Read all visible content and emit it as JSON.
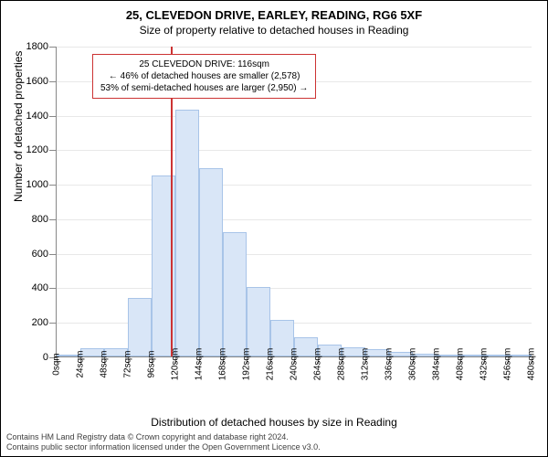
{
  "title_main": "25, CLEVEDON DRIVE, EARLEY, READING, RG6 5XF",
  "title_sub": "Size of property relative to detached houses in Reading",
  "y_axis_title": "Number of detached properties",
  "x_axis_title": "Distribution of detached houses by size in Reading",
  "annotation": {
    "line1": "25 CLEVEDON DRIVE: 116sqm",
    "line2": "← 46% of detached houses are smaller (2,578)",
    "line3": "53% of semi-detached houses are larger (2,950) →"
  },
  "footer": {
    "line1": "Contains HM Land Registry data © Crown copyright and database right 2024.",
    "line2": "Contains public sector information licensed under the Open Government Licence v3.0."
  },
  "chart": {
    "type": "histogram",
    "background_color": "#ffffff",
    "grid_color": "#e8e8e8",
    "axis_color": "#888888",
    "bar_fill": "#d9e6f7",
    "bar_stroke": "#a8c4e8",
    "reference_line_color": "#cc3333",
    "annotation_border": "#cc3333",
    "ylim": [
      0,
      1800
    ],
    "ytick_step": 200,
    "xlim": [
      0,
      480
    ],
    "xtick_step": 24,
    "reference_x": 116,
    "bar_width_x": 24,
    "x_labels": [
      "0sqm",
      "24sqm",
      "48sqm",
      "72sqm",
      "96sqm",
      "120sqm",
      "144sqm",
      "168sqm",
      "192sqm",
      "216sqm",
      "240sqm",
      "264sqm",
      "288sqm",
      "312sqm",
      "336sqm",
      "360sqm",
      "384sqm",
      "408sqm",
      "432sqm",
      "456sqm",
      "480sqm"
    ],
    "y_labels": [
      "0",
      "200",
      "400",
      "600",
      "800",
      "1000",
      "1200",
      "1400",
      "1600",
      "1800"
    ],
    "bars": [
      {
        "x_start": 0,
        "value": 5
      },
      {
        "x_start": 24,
        "value": 50
      },
      {
        "x_start": 48,
        "value": 50
      },
      {
        "x_start": 72,
        "value": 340
      },
      {
        "x_start": 96,
        "value": 1050
      },
      {
        "x_start": 120,
        "value": 1430
      },
      {
        "x_start": 144,
        "value": 1090
      },
      {
        "x_start": 168,
        "value": 720
      },
      {
        "x_start": 192,
        "value": 400
      },
      {
        "x_start": 216,
        "value": 210
      },
      {
        "x_start": 240,
        "value": 110
      },
      {
        "x_start": 264,
        "value": 70
      },
      {
        "x_start": 288,
        "value": 55
      },
      {
        "x_start": 312,
        "value": 45
      },
      {
        "x_start": 336,
        "value": 25
      },
      {
        "x_start": 360,
        "value": 15
      },
      {
        "x_start": 384,
        "value": 10
      },
      {
        "x_start": 408,
        "value": 5
      },
      {
        "x_start": 432,
        "value": 5
      },
      {
        "x_start": 456,
        "value": 10
      }
    ]
  }
}
